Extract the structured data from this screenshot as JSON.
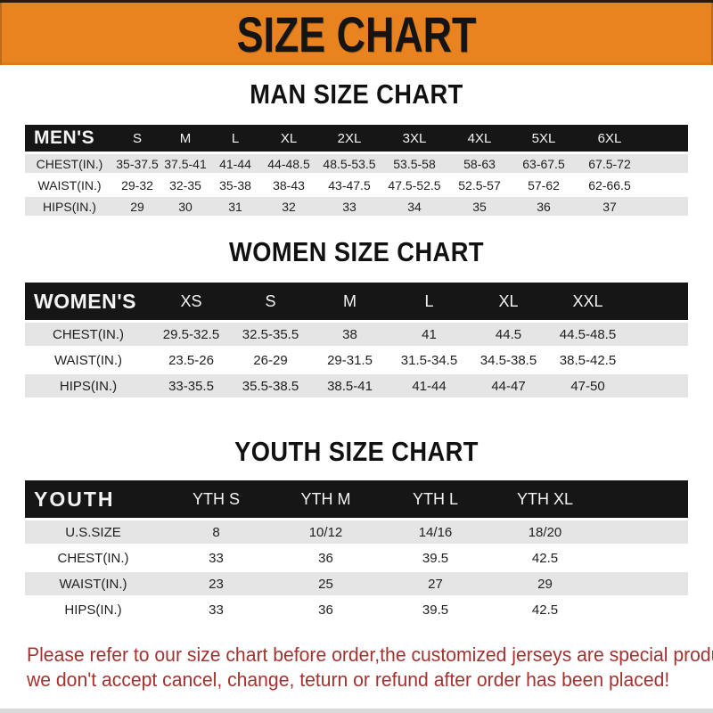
{
  "banner": {
    "title": "SIZE CHART"
  },
  "colors": {
    "banner_bg": "#E8831F",
    "header_bar": "#161616",
    "row_stripe": "#E5E5E5",
    "footer_text": "#A33330"
  },
  "sections": [
    {
      "id": "men",
      "title": "MAN SIZE CHART",
      "header": [
        "MEN'S",
        "S",
        "M",
        "L",
        "XL",
        "2XL",
        "3XL",
        "4XL",
        "5XL",
        "6XL"
      ],
      "rows": [
        [
          "CHEST(IN.)",
          "35-37.5",
          "37.5-41",
          "41-44",
          "44-48.5",
          "48.5-53.5",
          "53.5-58",
          "58-63",
          "63-67.5",
          "67.5-72"
        ],
        [
          "WAIST(IN.)",
          "29-32",
          "32-35",
          "35-38",
          "38-43",
          "43-47.5",
          "47.5-52.5",
          "52.5-57",
          "57-62",
          "62-66.5"
        ],
        [
          "HIPS(IN.)",
          "29",
          "30",
          "31",
          "32",
          "33",
          "34",
          "35",
          "36",
          "37"
        ]
      ]
    },
    {
      "id": "women",
      "title": "WOMEN SIZE CHART",
      "header": [
        "WOMEN'S",
        "XS",
        "S",
        "M",
        "L",
        "XL",
        "XXL"
      ],
      "rows": [
        [
          "CHEST(IN.)",
          "29.5-32.5",
          "32.5-35.5",
          "38",
          "41",
          "44.5",
          "44.5-48.5"
        ],
        [
          "WAIST(IN.)",
          "23.5-26",
          "26-29",
          "29-31.5",
          "31.5-34.5",
          "34.5-38.5",
          "38.5-42.5"
        ],
        [
          "HIPS(IN.)",
          "33-35.5",
          "35.5-38.5",
          "38.5-41",
          "41-44",
          "44-47",
          "47-50"
        ]
      ]
    },
    {
      "id": "youth",
      "title": "YOUTH SIZE CHART",
      "header": [
        "YOUTH",
        "YTH S",
        "YTH M",
        "YTH L",
        "YTH XL"
      ],
      "rows": [
        [
          "U.S.SIZE",
          "8",
          "10/12",
          "14/16",
          "18/20"
        ],
        [
          "CHEST(IN.)",
          "33",
          "36",
          "39.5",
          "42.5"
        ],
        [
          "WAIST(IN.)",
          "23",
          "25",
          "27",
          "29"
        ],
        [
          "HIPS(IN.)",
          "33",
          "36",
          "39.5",
          "42.5"
        ]
      ]
    }
  ],
  "footer": {
    "line1": "Please refer to our size chart before order,the customized jerseys are special products,",
    "line2": "we don't accept cancel, change, teturn or refund after order has been placed!"
  }
}
